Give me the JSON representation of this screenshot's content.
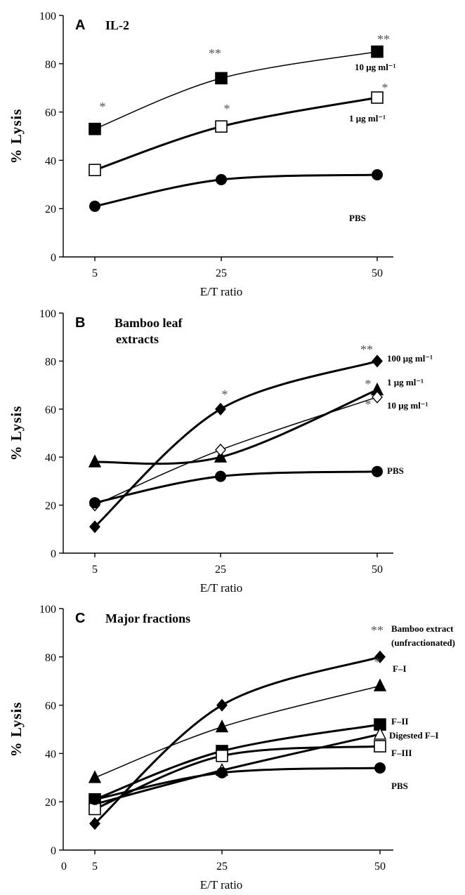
{
  "chart_data": [
    {
      "type": "line",
      "panel": "A",
      "title": "IL-2",
      "xlabel": "E/T ratio",
      "ylabel": "% Lysis",
      "categories": [
        "5",
        "25",
        "50"
      ],
      "ylim": [
        0,
        100
      ],
      "yticks": [
        "0",
        "20",
        "40",
        "60",
        "80",
        "100"
      ],
      "grid": false,
      "series": [
        {
          "name": "10 μg ml⁻¹",
          "marker": "square-filled",
          "values": [
            53,
            74,
            85
          ],
          "sig": [
            "*",
            "**",
            "**"
          ]
        },
        {
          "name": "1 μg ml⁻¹",
          "marker": "square-open",
          "values": [
            36,
            54,
            66
          ],
          "sig": [
            "",
            "*",
            "*"
          ]
        },
        {
          "name": "PBS",
          "marker": "circle-filled",
          "values": [
            21,
            32,
            34
          ],
          "sig": [
            "",
            "",
            ""
          ]
        }
      ]
    },
    {
      "type": "line",
      "panel": "B",
      "title": "Bamboo leaf extracts",
      "xlabel": "E/T ratio",
      "ylabel": "% Lysis",
      "categories": [
        "5",
        "25",
        "50"
      ],
      "ylim": [
        0,
        100
      ],
      "yticks": [
        "0",
        "20",
        "40",
        "60",
        "80",
        "100"
      ],
      "grid": false,
      "series": [
        {
          "name": "100 μg ml⁻¹",
          "marker": "diamond-filled",
          "values": [
            11,
            60,
            80
          ],
          "sig": [
            "",
            "*",
            "**"
          ]
        },
        {
          "name": "1 μg ml⁻¹",
          "marker": "triangle-filled",
          "values": [
            38,
            40,
            68
          ],
          "sig": [
            "",
            "",
            "*"
          ]
        },
        {
          "name": "10 μg ml⁻¹",
          "marker": "diamond-open",
          "values": [
            20,
            43,
            65
          ],
          "sig": [
            "",
            "",
            "*"
          ]
        },
        {
          "name": "PBS",
          "marker": "circle-filled",
          "values": [
            21,
            32,
            34
          ],
          "sig": [
            "",
            "",
            ""
          ]
        }
      ]
    },
    {
      "type": "line",
      "panel": "C",
      "title": "Major fractions",
      "xlabel": "E/T ratio",
      "ylabel": "% Lysis",
      "categories": [
        "5",
        "25",
        "50"
      ],
      "extra_xtick": "0",
      "ylim": [
        0,
        100
      ],
      "yticks": [
        "0",
        "20",
        "40",
        "60",
        "80",
        "100"
      ],
      "grid": false,
      "series": [
        {
          "name": "Bamboo extract (unfractionated)",
          "marker": "diamond-filled",
          "values": [
            11,
            60,
            80
          ],
          "sig": [
            "",
            "",
            "**"
          ]
        },
        {
          "name": "F–I",
          "marker": "triangle-filled",
          "values": [
            30,
            51,
            68
          ],
          "sig": [
            "",
            "",
            "*"
          ]
        },
        {
          "name": "F–II",
          "marker": "square-filled",
          "values": [
            21,
            41,
            52
          ],
          "sig": [
            "",
            "",
            ""
          ]
        },
        {
          "name": "Digested F–I",
          "marker": "triangle-open",
          "values": [
            19,
            33,
            48
          ],
          "sig": [
            "",
            "",
            ""
          ]
        },
        {
          "name": "F–III",
          "marker": "square-open",
          "values": [
            17,
            39,
            43
          ],
          "sig": [
            "",
            "",
            ""
          ]
        },
        {
          "name": "PBS",
          "marker": "circle-filled",
          "values": [
            21,
            32,
            34
          ],
          "sig": [
            "",
            "",
            ""
          ]
        }
      ]
    }
  ]
}
